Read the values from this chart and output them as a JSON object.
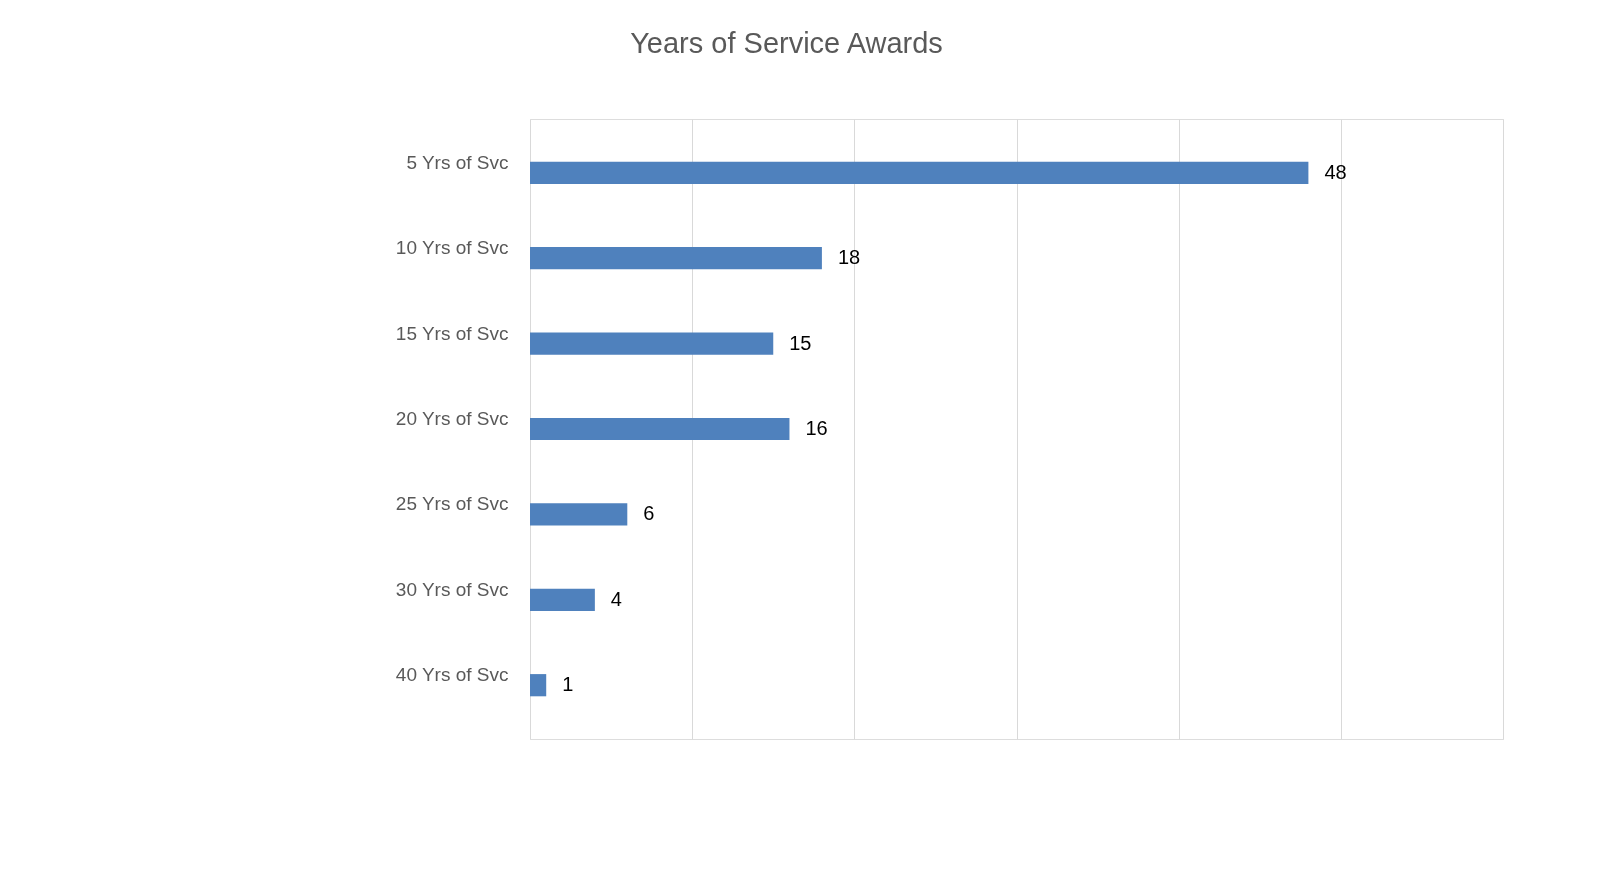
{
  "chart_data": {
    "type": "bar",
    "orientation": "horizontal",
    "title": "Years of Service Awards",
    "categories": [
      "5 Yrs of Svc",
      "10 Yrs of Svc",
      "15 Yrs of Svc",
      "20 Yrs of Svc",
      "25 Yrs of Svc",
      "30 Yrs of Svc",
      "40 Yrs of Svc"
    ],
    "values": [
      48,
      18,
      15,
      16,
      6,
      4,
      1
    ],
    "color": "#4f81bd",
    "xlim": [
      0,
      60
    ],
    "xticks": [
      {
        "value": 0,
        "label": null
      },
      {
        "value": 10,
        "label": null
      },
      {
        "value": 20,
        "label": null
      },
      {
        "value": 30,
        "label": null
      },
      {
        "value": 40,
        "label": null
      },
      {
        "value": 50,
        "label": null
      },
      {
        "value": 60,
        "label": null
      }
    ],
    "grid": "x",
    "tick_labels": false,
    "data_labels": true
  }
}
